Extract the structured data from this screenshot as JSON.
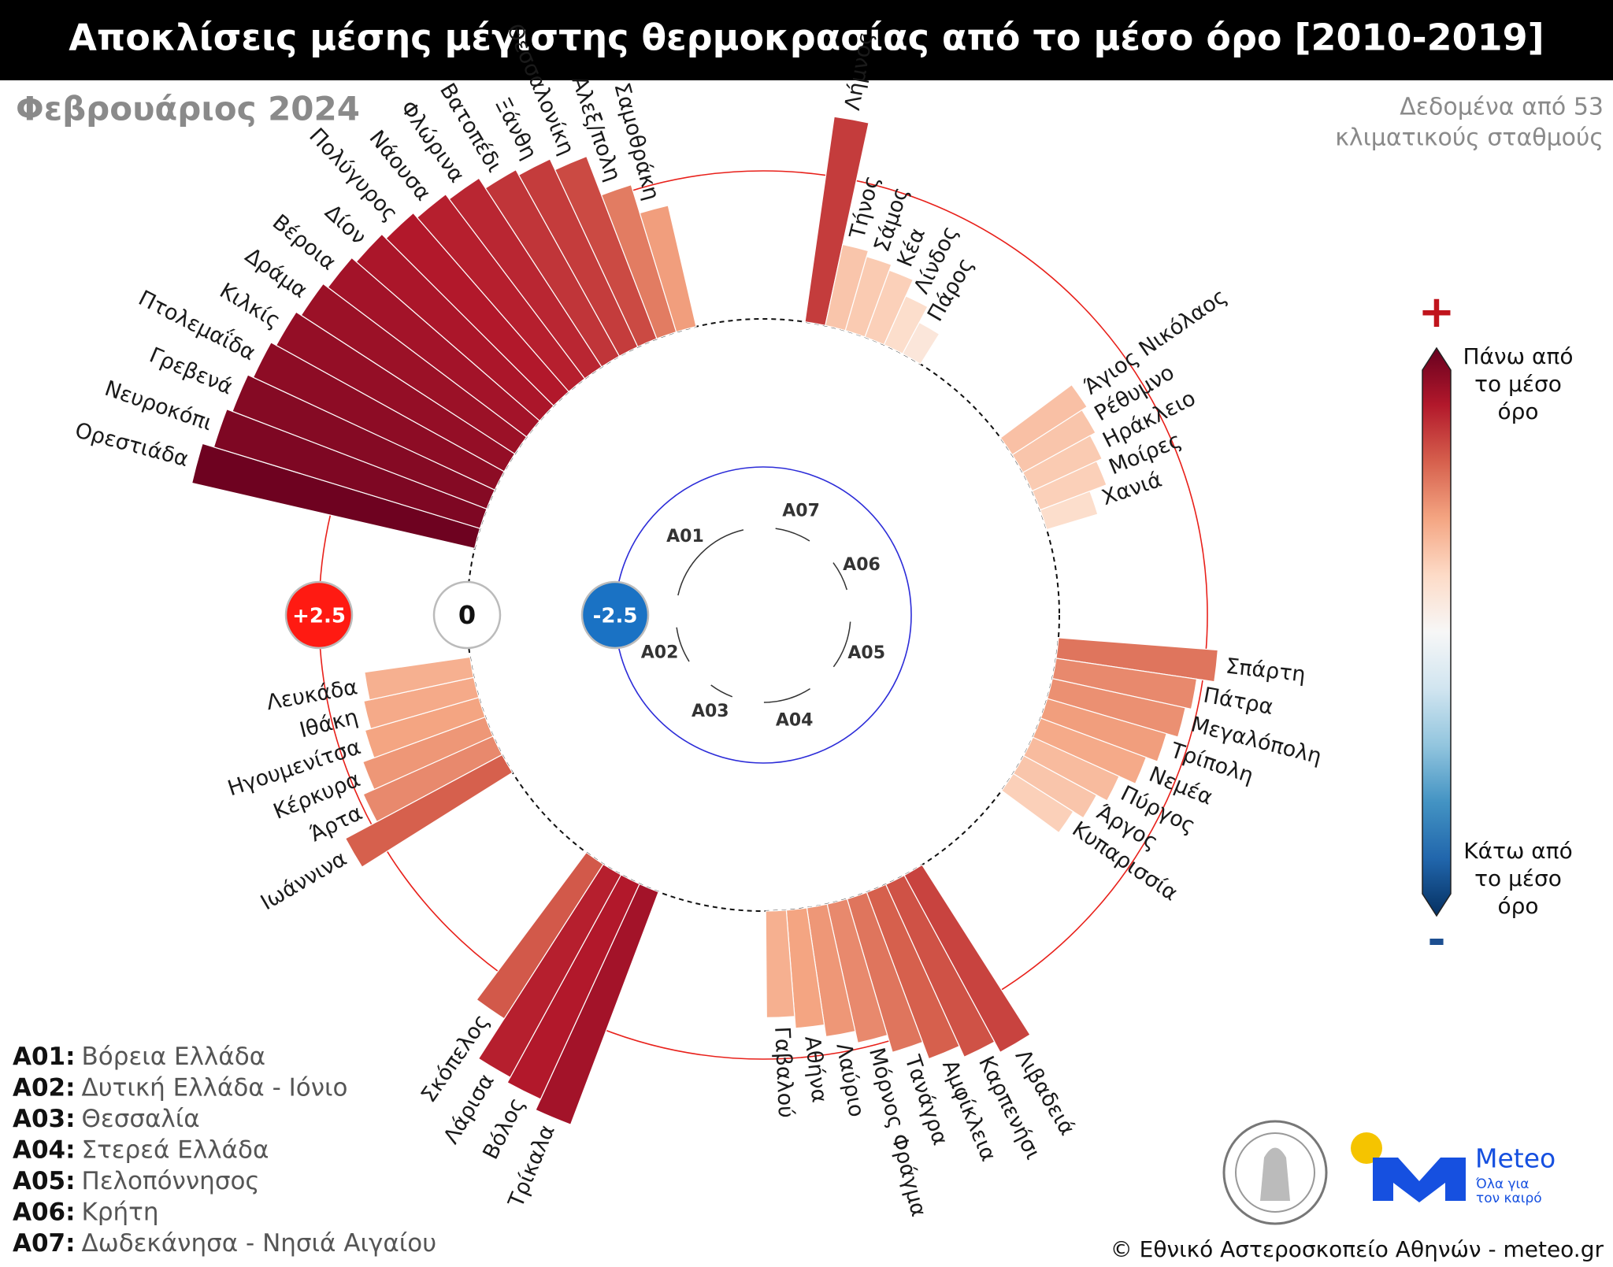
{
  "chart_data": {
    "type": "radial_bar",
    "title": "Αποκλίσεις μέσης μέγιστης θερμοκρασίας από το μέσο όρο [2010-2019]",
    "subtitle": "Φεβρουάριος 2024",
    "note": [
      "Δεδομένα από 53",
      "κλιματικούς σταθμούς"
    ],
    "ylim": [
      -5,
      5
    ],
    "yticks": [
      {
        "value": 2.5,
        "label": "+2.5"
      },
      0,
      -2.5
    ],
    "colorbar": {
      "top_sign": "+",
      "top_label": "Πάνω από το μέσο όρο",
      "bottom_label": "Κάτω από το μέσο όρο",
      "bottom_sign": "-"
    },
    "series": [
      {
        "name": "A01",
        "categories": [
          "Ορεστιάδα",
          "Νευροκόπι",
          "Γρεβενά",
          "Πτολεμαΐδα",
          "Κιλκίς",
          "Δράμα",
          "Βέροια",
          "Δίον",
          "Πολύγυρος",
          "Νάουσα",
          "Φλώρινα",
          "Βατοπέδι",
          "Ξάνθη",
          "Θεσσαλονίκη",
          "Αλεξ/πολη",
          "Σαμοθράκη"
        ],
        "values": [
          4.9,
          4.7,
          4.6,
          4.5,
          4.4,
          4.3,
          4.2,
          4.1,
          4.0,
          3.9,
          3.8,
          3.6,
          3.5,
          3.3,
          2.6,
          2.1
        ]
      },
      {
        "name": "A07",
        "categories": [
          "Λήμνος",
          "Τήνος",
          "Σάμος",
          "Κέα",
          "Λίνδος",
          "Πάρος"
        ],
        "values": [
          3.5,
          1.4,
          1.3,
          1.2,
          0.9,
          0.6
        ]
      },
      {
        "name": "A06",
        "categories": [
          "Άγιος Νικόλαος",
          "Ρέθυμνο",
          "Ηράκλειο",
          "Μοίρες",
          "Χανιά"
        ],
        "values": [
          1.5,
          1.4,
          1.3,
          1.2,
          0.9
        ]
      },
      {
        "name": "A05",
        "categories": [
          "Σπάρτη",
          "Πάτρα",
          "Μεγαλόπολη",
          "Τρίπολη",
          "Νεμέα",
          "Πύργος",
          "Άργος",
          "Κυπαρισσία"
        ],
        "values": [
          2.7,
          2.4,
          2.3,
          2.1,
          1.9,
          1.6,
          1.4,
          1.2
        ]
      },
      {
        "name": "A04",
        "categories": [
          "Λιβαδειά",
          "Καρπενήσι",
          "Αμφίκλεια",
          "Τανάγρα",
          "Μόρνος Φράγμα",
          "Λαύριο",
          "Αθήνα",
          "Γαβαλού"
        ],
        "values": [
          3.4,
          3.2,
          3.0,
          2.7,
          2.4,
          2.2,
          2.0,
          1.8
        ]
      },
      {
        "name": "A03",
        "categories": [
          "Τρίκαλα",
          "Βόλος",
          "Λάρισα",
          "Σκόπελος"
        ],
        "values": [
          4.2,
          4.0,
          3.9,
          3.1
        ]
      },
      {
        "name": "A02",
        "categories": [
          "Ιωάννινα",
          "Άρτα",
          "Κέρκυρα",
          "Ηγουμενίτσα",
          "Ιθάκη",
          "Λευκάδα"
        ],
        "values": [
          3.0,
          2.4,
          2.2,
          2.0,
          1.9,
          1.8
        ]
      }
    ],
    "legend": [
      {
        "key": "A01:",
        "label": "Βόρεια Ελλάδα"
      },
      {
        "key": "A02:",
        "label": "Δυτική Ελλάδα - Ιόνιο"
      },
      {
        "key": "A03:",
        "label": "Θεσσαλία"
      },
      {
        "key": "A04:",
        "label": "Στερεά Ελλάδα"
      },
      {
        "key": "A05:",
        "label": "Πελοπόννησος"
      },
      {
        "key": "A06:",
        "label": "Κρήτη"
      },
      {
        "key": "A07:",
        "label": "Δωδεκάνησα - Νησιά Αιγαίου"
      }
    ]
  },
  "footer": {
    "brand": "Meteo",
    "slogan": [
      "Όλα για",
      "τον καιρό"
    ],
    "credit": "© Εθνικό Αστεροσκοπείο Αθηνών - meteo.gr"
  }
}
